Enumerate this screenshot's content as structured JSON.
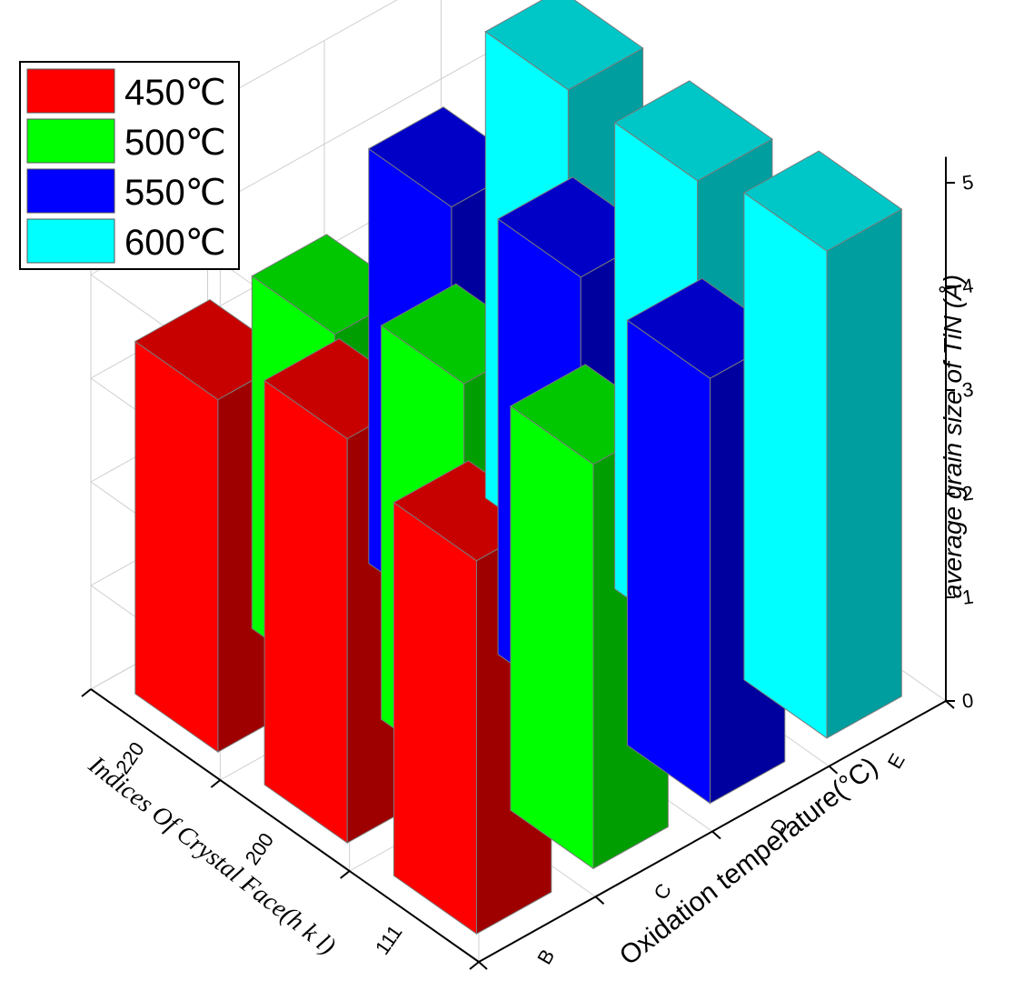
{
  "chart_data": {
    "type": "bar",
    "subtype": "3d-bar",
    "x_axis": {
      "label": "Oxidation temperature(°C)",
      "categories": [
        "B",
        "C",
        "D",
        "E"
      ]
    },
    "y_axis": {
      "label": "Indices Of Crystal Face(h k l)",
      "categories": [
        "111",
        "200",
        "220"
      ]
    },
    "z_axis": {
      "label": "average grain size of TiN (Å)",
      "range": [
        0,
        5
      ],
      "ticks": [
        "0",
        "1",
        "2",
        "3",
        "4",
        "5"
      ]
    },
    "grid": true,
    "legend_position": "top-left",
    "series": [
      {
        "name": "450℃",
        "color": "#ff0000",
        "values": [
          3.6,
          3.9,
          3.4
        ]
      },
      {
        "name": "500℃",
        "color": "#00ff00",
        "values": [
          3.9,
          3.8,
          3.4
        ]
      },
      {
        "name": "550℃",
        "color": "#0000ff",
        "values": [
          4.1,
          4.2,
          4.0
        ]
      },
      {
        "name": "600℃",
        "color": "#00ffff",
        "values": [
          4.7,
          4.5,
          4.5
        ]
      }
    ]
  }
}
